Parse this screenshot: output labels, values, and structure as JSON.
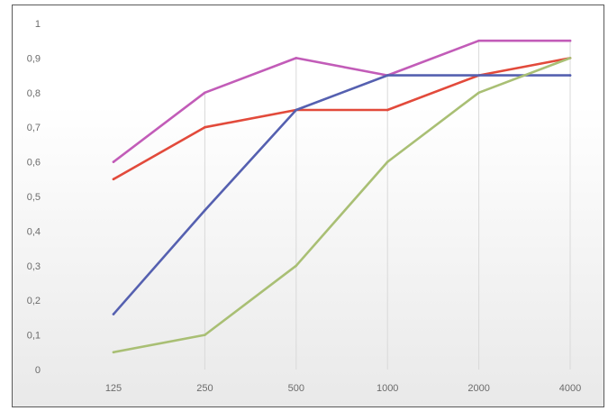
{
  "chart_data": {
    "type": "line",
    "categories": [
      "125",
      "250",
      "500",
      "1000",
      "2000",
      "4000"
    ],
    "y_tick_labels": [
      "0",
      "0,1",
      "0,2",
      "0,3",
      "0,4",
      "0,5",
      "0,6",
      "0,7",
      "0,8",
      "0,9",
      "1"
    ],
    "ylim": [
      0,
      1
    ],
    "grid": "vertical dropdown lines at categories",
    "legend": "none",
    "title": "",
    "xlabel": "",
    "ylabel": "",
    "series": [
      {
        "color": "#c25cb8",
        "values": [
          0.6,
          0.8,
          0.9,
          0.85,
          0.95,
          0.95
        ]
      },
      {
        "color": "#e24a3b",
        "values": [
          0.55,
          0.7,
          0.75,
          0.75,
          0.85,
          0.9
        ]
      },
      {
        "color": "#5560b0",
        "values": [
          0.16,
          0.46,
          0.75,
          0.85,
          0.85,
          0.85
        ]
      },
      {
        "color": "#a9bf74",
        "values": [
          0.05,
          0.1,
          0.3,
          0.6,
          0.8,
          0.9
        ]
      }
    ]
  }
}
